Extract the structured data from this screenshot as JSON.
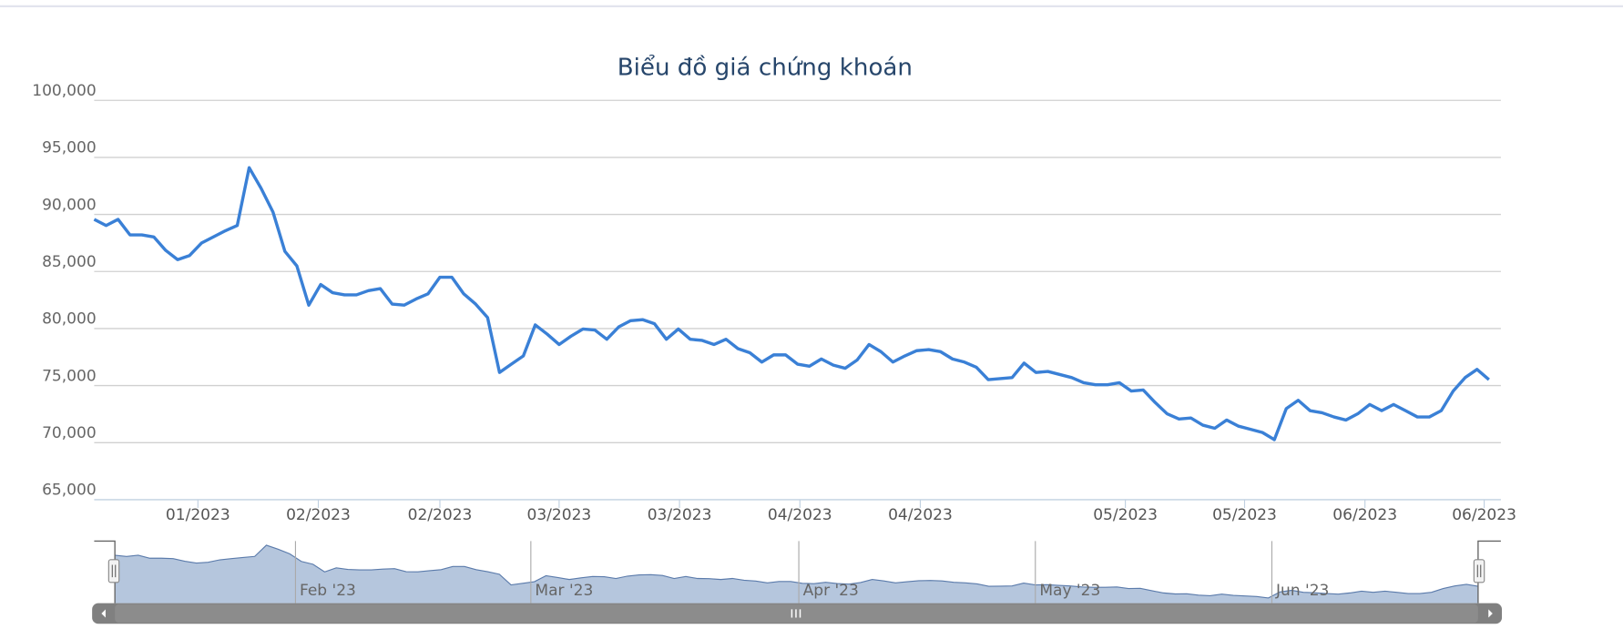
{
  "chart_data": {
    "type": "line",
    "title": "Biểu đồ giá chứng khoán",
    "color": "#3a80d6",
    "grid": true,
    "values": [
      89570,
      89030,
      89570,
      88210,
      88210,
      88030,
      86850,
      86040,
      86400,
      87490,
      88030,
      88570,
      89030,
      94100,
      92290,
      90210,
      86760,
      85490,
      82050,
      83860,
      83140,
      82950,
      82950,
      83320,
      83500,
      82140,
      82050,
      82590,
      83040,
      84500,
      84500,
      83040,
      82140,
      80960,
      76150,
      76880,
      77600,
      80320,
      79510,
      78600,
      79330,
      79960,
      79870,
      79060,
      80140,
      80690,
      80780,
      80420,
      79060,
      79960,
      79060,
      78960,
      78600,
      79060,
      78240,
      77880,
      77060,
      77690,
      77690,
      76880,
      76700,
      77330,
      76790,
      76520,
      77240,
      78600,
      77970,
      77060,
      77600,
      78060,
      78150,
      77970,
      77330,
      77060,
      76610,
      75520,
      75610,
      75700,
      76970,
      76150,
      76240,
      75970,
      75700,
      75250,
      75070,
      75070,
      75250,
      74520,
      74610,
      73520,
      72530,
      72070,
      72160,
      71530,
      71260,
      71980,
      71440,
      71170,
      70890,
      70260,
      72980,
      73710,
      72800,
      72620,
      72250,
      71980,
      72530,
      73340,
      72800,
      73340,
      72800,
      72250,
      72250,
      72800,
      74520,
      75700,
      76420,
      75520
    ],
    "xlim": [
      0,
      118
    ],
    "xticks": [
      {
        "value": 8.7,
        "label": "01/2023"
      },
      {
        "value": 18.8,
        "label": "02/2023"
      },
      {
        "value": 29,
        "label": "02/2023"
      },
      {
        "value": 39,
        "label": "03/2023"
      },
      {
        "value": 49.1,
        "label": "03/2023"
      },
      {
        "value": 59.2,
        "label": "04/2023"
      },
      {
        "value": 69.3,
        "label": "04/2023"
      },
      {
        "value": 86.5,
        "label": "05/2023"
      },
      {
        "value": 96.5,
        "label": "05/2023"
      },
      {
        "value": 106.6,
        "label": "06/2023"
      },
      {
        "value": 116.6,
        "label": "06/2023"
      }
    ],
    "ylim": [
      65000,
      100000
    ],
    "yticks": [
      {
        "value": 65000,
        "label": "65,000"
      },
      {
        "value": 70000,
        "label": "70,000"
      },
      {
        "value": 75000,
        "label": "75,000"
      },
      {
        "value": 80000,
        "label": "80,000"
      },
      {
        "value": 85000,
        "label": "85,000"
      },
      {
        "value": 90000,
        "label": "90,000"
      },
      {
        "value": 95000,
        "label": "95,000"
      },
      {
        "value": 100000,
        "label": "100,000"
      }
    ],
    "navigator": {
      "xticks": [
        {
          "value": 15.5,
          "label": "Feb '23"
        },
        {
          "value": 35.7,
          "label": "Mar '23"
        },
        {
          "value": 58.7,
          "label": "Apr '23"
        },
        {
          "value": 79,
          "label": "May '23"
        },
        {
          "value": 99.3,
          "label": "Jun '23"
        }
      ]
    }
  }
}
